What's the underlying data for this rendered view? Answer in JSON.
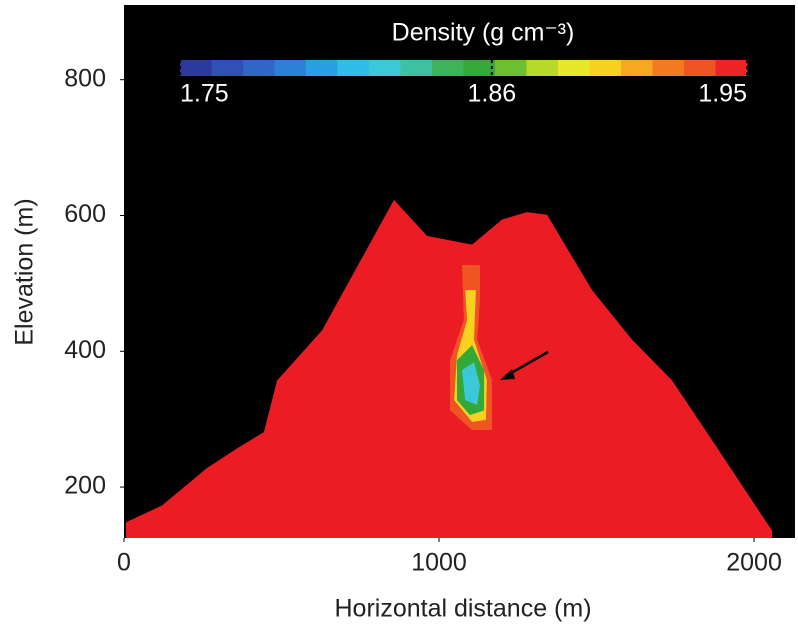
{
  "chart_data": {
    "type": "contour",
    "xlabel": "Horizontal distance (m)",
    "ylabel": "Elevation (m)",
    "xlim": [
      0,
      2130
    ],
    "ylim": [
      125,
      910
    ],
    "xticks": [
      0,
      1000,
      2000
    ],
    "yticks": [
      200,
      400,
      600,
      800
    ],
    "background": "#000000",
    "surface": {
      "color": "#ec1c24",
      "x": [
        6,
        121,
        263,
        359,
        444,
        486,
        629,
        857,
        962,
        1105,
        1200,
        1279,
        1343,
        1486,
        1613,
        1740,
        1867,
        2057
      ],
      "y": [
        148,
        173,
        228,
        257,
        281,
        357,
        431,
        623,
        570,
        557,
        594,
        605,
        601,
        490,
        417,
        357,
        269,
        136
      ]
    },
    "contours": [
      {
        "level": 1.93,
        "x": [
          1073,
          1130,
          1130,
          1121,
          1168,
          1168,
          1105,
          1035,
          1035,
          1079
        ],
        "y": [
          527,
          527,
          476,
          417,
          358,
          284,
          284,
          313,
          387,
          446
        ]
      },
      {
        "level": 1.9,
        "x": [
          1083,
          1117,
          1111,
          1152,
          1149,
          1105,
          1048,
          1057,
          1089
        ],
        "y": [
          490,
          490,
          417,
          358,
          299,
          296,
          328,
          394,
          446
        ]
      },
      {
        "level": 1.86,
        "x": [
          1057,
          1105,
          1143,
          1143,
          1098,
          1057
        ],
        "y": [
          387,
          409,
          372,
          313,
          306,
          328
        ]
      },
      {
        "level": 1.82,
        "x": [
          1073,
          1111,
          1130,
          1121,
          1083
        ],
        "y": [
          372,
          384,
          350,
          321,
          328
        ]
      }
    ],
    "colorbar": {
      "title": "Density (g cm⁻³)",
      "lim": [
        1.75,
        1.95
      ],
      "ticks": [
        1.75,
        1.86,
        1.95
      ],
      "colors": [
        "#2b3a9c",
        "#2f50b4",
        "#2f66c8",
        "#2d80d8",
        "#2aa0e4",
        "#2ebde8",
        "#3cc8d8",
        "#3fc0a0",
        "#3cb45a",
        "#34a838",
        "#6cc030",
        "#b8d82a",
        "#e8e82a",
        "#f8d020",
        "#f8a820",
        "#f47a22",
        "#ef5523",
        "#ec2426"
      ]
    }
  }
}
